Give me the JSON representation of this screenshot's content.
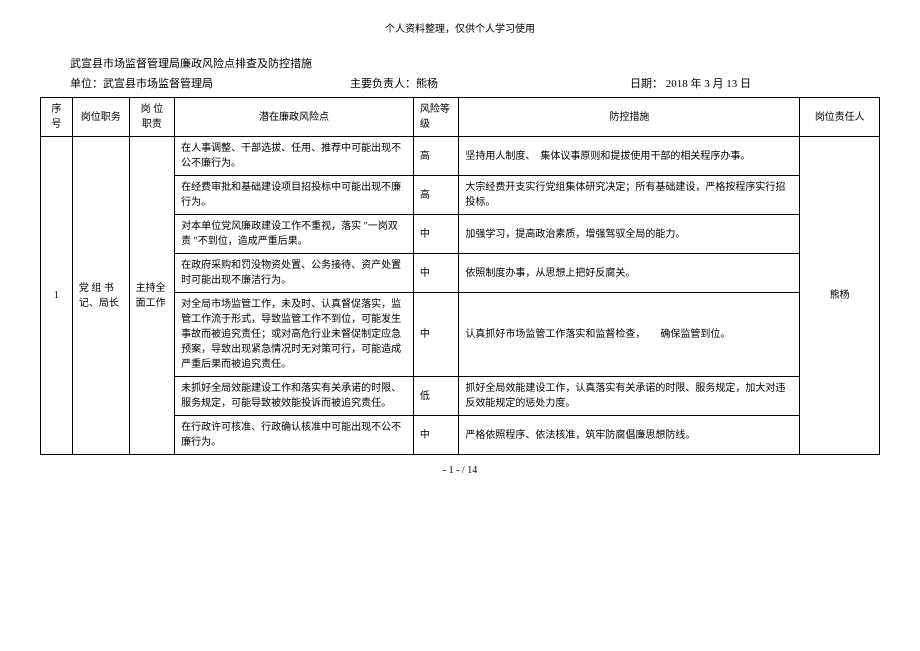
{
  "header_note": "个人资料整理，仅供个人学习使用",
  "title": "武宣县市场监督管理局廉政风险点排查及防控措施",
  "meta": {
    "unit_label": "单位：",
    "unit_value": "武宣县市场监督管理局",
    "person_label": "主要负责人：",
    "person_value": "熊杨",
    "date_label": "日期：",
    "date_value": " 2018 年 3 月 13 日"
  },
  "columns": {
    "seq": "序号",
    "position": "岗位职务",
    "duty": "岗 位 职责",
    "risk": "潜在廉政风险点",
    "level": "风险等级",
    "measure": "防控措施",
    "owner": "岗位责任人"
  },
  "row": {
    "seq": "1",
    "position": "党 组 书记、局长",
    "duty": "主持全面工作",
    "owner": "熊杨",
    "risks": [
      {
        "text": "在人事调整、干部选拔、任用、推荐中可能出现不公不廉行为。",
        "level": "高",
        "measure": "坚持用人制度、　集体议事原则和提拔使用干部的相关程序办事。"
      },
      {
        "text": "在经费审批和基础建设项目招投标中可能出现不廉行为。",
        "level": "高",
        "measure": "大宗经费开支实行党组集体研究决定；所有基础建设，严格按程序实行招投标。"
      },
      {
        "text": "对本单位党风廉政建设工作不重视，落实 \"一岗双责 \"不到位，造成严重后果。",
        "level": "中",
        "measure": "加强学习，提高政治素质，增强驾驭全局的能力。"
      },
      {
        "text": "在政府采购和罚没物资处置、公务接待、资产处置时可能出现不廉洁行为。",
        "level": "中",
        "measure": "依照制度办事，从思想上把好反腐关。"
      },
      {
        "text": "对全局市场监管工作，未及时、认真督促落实，监管工作流于形式，导致监管工作不到位，可能发生事故而被追究责任；或对高危行业未督促制定应急预案，导致出现紧急情况时无对策可行，可能造成严重后果而被追究责任。",
        "level": "中",
        "measure": "认真抓好市场监管工作落实和监督检查，　　确保监管到位。"
      },
      {
        "text": "未抓好全局效能建设工作和落实有关承诺的时限、服务规定，可能导致被效能投诉而被追究责任。",
        "level": "低",
        "measure": "抓好全局效能建设工作，认真落实有关承诺的时限、服务规定，加大对违反效能规定的惩处力度。"
      },
      {
        "text": "在行政许可核准、行政确认核准中可能出现不公不廉行为。",
        "level": "中",
        "measure": "严格依照程序、依法核准，筑牢防腐倡廉思想防线。"
      }
    ]
  },
  "footer": "- 1 - / 14"
}
